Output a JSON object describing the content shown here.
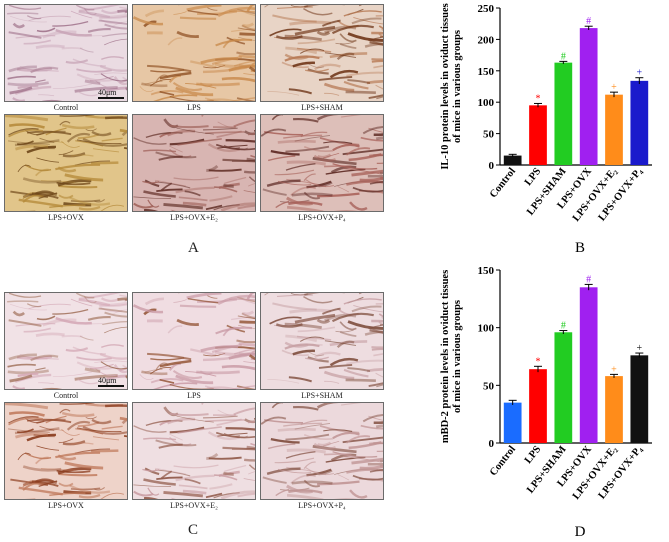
{
  "panel_a": {
    "letter": "A",
    "scale_bar": "40μm",
    "images": [
      {
        "caption": "Control",
        "tone": [
          "#eadbe2",
          "#c9a5b7",
          "#9c6d86"
        ]
      },
      {
        "caption": "LPS",
        "tone": [
          "#e7c7a5",
          "#c98a4c",
          "#8f4f22"
        ]
      },
      {
        "caption": "LPS+SHAM",
        "tone": [
          "#e8d4c6",
          "#b77a55",
          "#6e3416"
        ]
      },
      {
        "caption": "LPS+OVX",
        "tone": [
          "#e1c58a",
          "#b58a3a",
          "#6d4517"
        ]
      },
      {
        "caption": "LPS+OVX+E₂",
        "tone": [
          "#d8b5b2",
          "#a0625a",
          "#5d2a22"
        ]
      },
      {
        "caption": "LPS+OVX+P₄",
        "tone": [
          "#ddbfb9",
          "#a8625a",
          "#5a2620"
        ]
      }
    ]
  },
  "panel_c": {
    "letter": "C",
    "scale_bar": "40μm",
    "images": [
      {
        "caption": "Control",
        "tone": [
          "#f1e2e6",
          "#d4a9b6",
          "#9c6a52"
        ]
      },
      {
        "caption": "LPS",
        "tone": [
          "#f0dde2",
          "#c99aa5",
          "#8e4d2c"
        ]
      },
      {
        "caption": "LPS+SHAM",
        "tone": [
          "#eedde0",
          "#c7a0a4",
          "#7d4b3a"
        ]
      },
      {
        "caption": "LPS+OVX",
        "tone": [
          "#eed3c9",
          "#c07a5c",
          "#8a3b1c"
        ]
      },
      {
        "caption": "LPS+OVX+E₂",
        "tone": [
          "#efdfe2",
          "#c99ca2",
          "#8b5140"
        ]
      },
      {
        "caption": "LPS+OVX+P₄",
        "tone": [
          "#ecd9dc",
          "#c09494",
          "#7e4a3b"
        ]
      }
    ]
  },
  "panel_b": {
    "letter": "B",
    "chart_data": {
      "type": "bar",
      "ylabel_line1": "IL-10 protein levels in oviduct tissues",
      "ylabel_line2": "of mice in various groups",
      "ylim": [
        0,
        250
      ],
      "yticks": [
        0,
        50,
        100,
        150,
        200,
        250
      ],
      "categories": [
        "Control",
        "LPS",
        "LPS+SHAM",
        "LPS+OVX",
        "LPS+OVX+E₂",
        "LPS+OVX+P₄"
      ],
      "values": [
        15,
        95,
        163,
        218,
        112,
        134
      ],
      "errors": [
        2,
        3,
        2,
        3,
        4,
        5
      ],
      "markers": [
        "",
        "*",
        "#",
        "#",
        "+",
        "+"
      ],
      "colors": [
        "#111111",
        "#ff0000",
        "#22cc22",
        "#a020f0",
        "#ff8c1a",
        "#1a1acc"
      ]
    }
  },
  "panel_d": {
    "letter": "D",
    "chart_data": {
      "type": "bar",
      "ylabel_line1": "mBD-2 protein levels in oviduct tissues",
      "ylabel_line2": "of mice in various groups",
      "ylim": [
        0,
        150
      ],
      "yticks": [
        0,
        50,
        100,
        150
      ],
      "categories": [
        "Control",
        "LPS",
        "LPS+SHAM",
        "LPS+OVX",
        "LPS+OVX+E₂",
        "LPS+OVX+P₄"
      ],
      "values": [
        35,
        64,
        96,
        135,
        58,
        76
      ],
      "errors": [
        2,
        2.5,
        1.5,
        2.5,
        1.5,
        2
      ],
      "markers": [
        "",
        "*",
        "#",
        "#",
        "+",
        "+"
      ],
      "colors": [
        "#1a6cff",
        "#ff0000",
        "#22cc22",
        "#a020f0",
        "#ff8c1a",
        "#111111"
      ]
    }
  }
}
